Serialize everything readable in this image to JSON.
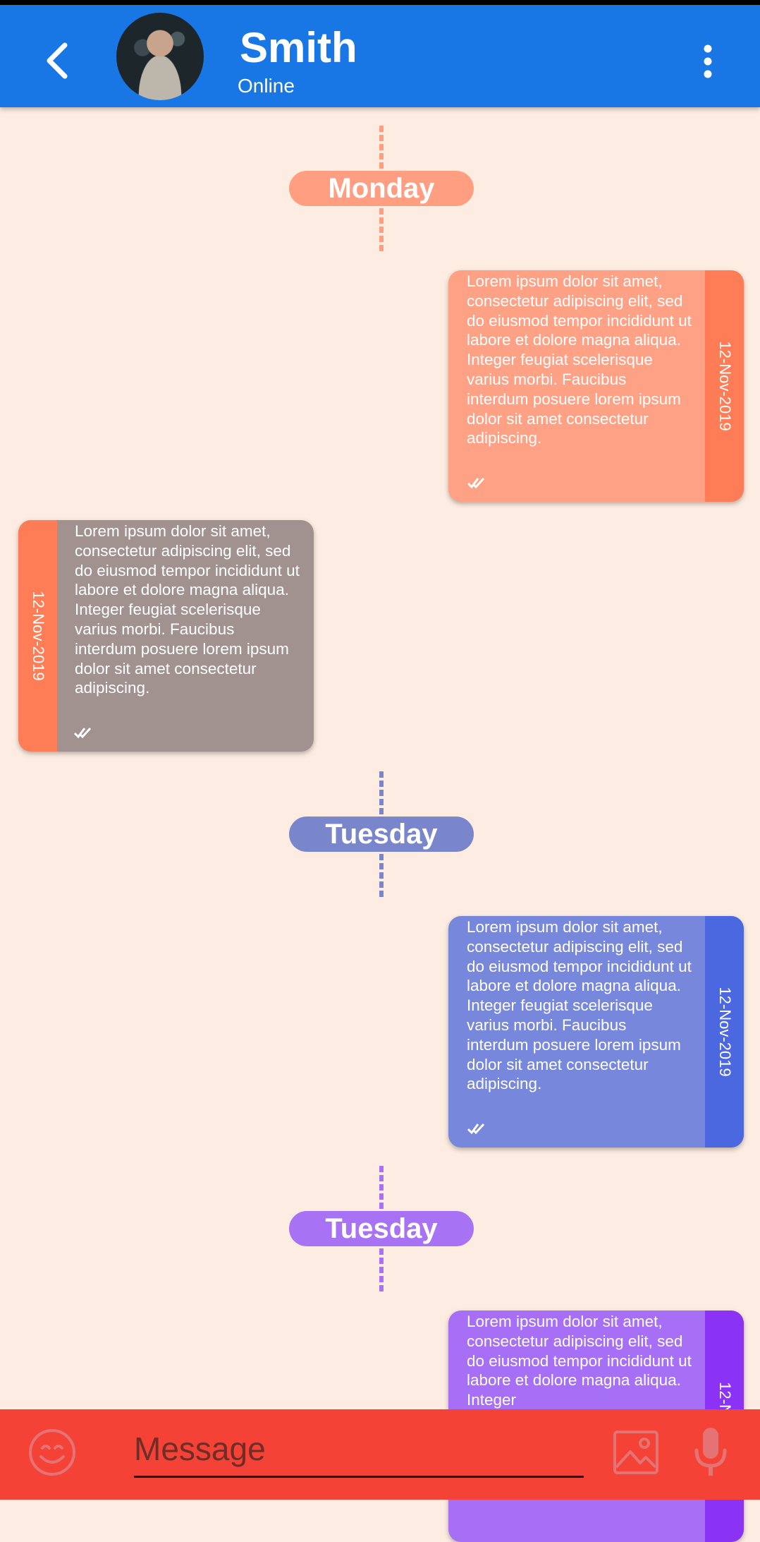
{
  "header": {
    "contact_name": "Smith",
    "status": "Online",
    "back_icon": "chevron-left-icon",
    "menu_icon": "more-vertical-icon",
    "color": "#1877e4"
  },
  "day_separators": [
    {
      "label": "Monday",
      "color": "#ff9e80"
    },
    {
      "label": "Tuesday",
      "color": "#7986cb"
    },
    {
      "label": "Tuesday",
      "color": "#a872f5"
    }
  ],
  "messages": [
    {
      "direction": "out",
      "text": "Lorem ipsum dolor sit amet, consectetur adipiscing elit, sed do eiusmod tempor incididunt ut labore et dolore magna aliqua. Integer feugiat scelerisque varius morbi. Faucibus interdum posuere lorem ipsum dolor sit amet consectetur adipiscing.",
      "date": "12-Nov-2019",
      "status_icon": "double-check-icon",
      "bubble_color": "#ffa185",
      "strip_color": "#ff7d56"
    },
    {
      "direction": "in",
      "text": "Lorem ipsum dolor sit amet, consectetur adipiscing elit, sed do eiusmod tempor incididunt ut labore et dolore magna aliqua. Integer feugiat scelerisque varius morbi. Faucibus interdum posuere lorem ipsum dolor sit amet consectetur adipiscing.",
      "date": "12-Nov-2019",
      "status_icon": "double-check-icon",
      "bubble_color": "#a1928f",
      "strip_color": "#ff7d56"
    },
    {
      "direction": "out",
      "text": "Lorem ipsum dolor sit amet, consectetur adipiscing elit, sed do eiusmod tempor incididunt ut labore et dolore magna aliqua. Integer feugiat scelerisque varius morbi. Faucibus interdum posuere lorem ipsum dolor sit amet consectetur adipiscing.",
      "date": "12-Nov-2019",
      "status_icon": "double-check-icon",
      "bubble_color": "#7788dc",
      "strip_color": "#4c68e0"
    },
    {
      "direction": "out",
      "text": "Lorem ipsum dolor sit amet, consectetur adipiscing elit, sed do eiusmod tempor incididunt ut labore et dolore magna aliqua. Integer",
      "date": "12-N",
      "status_icon": "double-check-icon",
      "bubble_color": "#a66ff6",
      "strip_color": "#8a33f5"
    }
  ],
  "composer": {
    "placeholder": "Message",
    "emoji_icon": "smiley-icon",
    "image_icon": "image-icon",
    "mic_icon": "microphone-icon",
    "color": "#f44336"
  }
}
